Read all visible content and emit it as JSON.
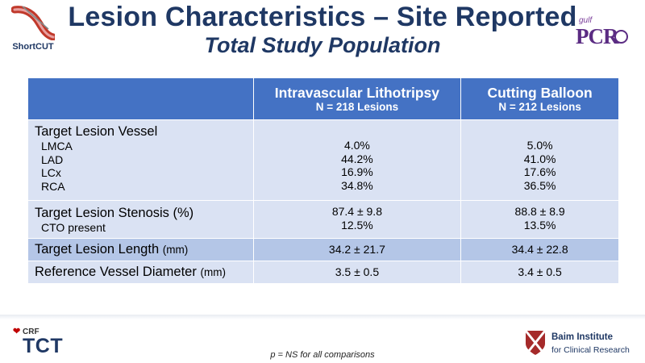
{
  "header": {
    "title": "Lesion Characteristics – Site Reported",
    "subtitle": "Total Study Population",
    "logo_left_text": "ShortCUT",
    "logo_right": {
      "top": "gulf",
      "main": "PCR"
    }
  },
  "table": {
    "columns": [
      {
        "name": "Intravascular Lithotripsy",
        "n": "N = 218 Lesions"
      },
      {
        "name": "Cutting Balloon",
        "n": "N = 212 Lesions"
      }
    ],
    "vessel": {
      "label": "Target Lesion Vessel",
      "subs": [
        "LMCA",
        "LAD",
        "LCx",
        "RCA"
      ],
      "ivl": [
        "4.0%",
        "44.2%",
        "16.9%",
        "34.8%"
      ],
      "cb": [
        "5.0%",
        "41.0%",
        "17.6%",
        "36.5%"
      ]
    },
    "stenosis": {
      "label": "Target Lesion Stenosis (%)",
      "sub": "CTO present",
      "ivl": [
        "87.4 ± 9.8",
        "12.5%"
      ],
      "cb": [
        "88.8 ± 8.9",
        "13.5%"
      ]
    },
    "length": {
      "label": "Target Lesion Length",
      "unit": "(mm)",
      "ivl": "34.2 ± 21.7",
      "cb": "34.4 ± 22.8"
    },
    "ref": {
      "label": "Reference Vessel Diameter",
      "unit": "(mm)",
      "ivl": "3.5 ± 0.5",
      "cb": "3.4 ± 0.5"
    }
  },
  "footer": {
    "crf": "CRF",
    "tct": "TCT",
    "note": "p = NS for all comparisons",
    "baim_line1": "Baim Institute",
    "baim_line2": "for Clinical Research"
  },
  "colors": {
    "title": "#1f3864",
    "header_fill": "#4472c4",
    "band_light": "#dae2f3",
    "band_dark": "#b4c6e7"
  }
}
